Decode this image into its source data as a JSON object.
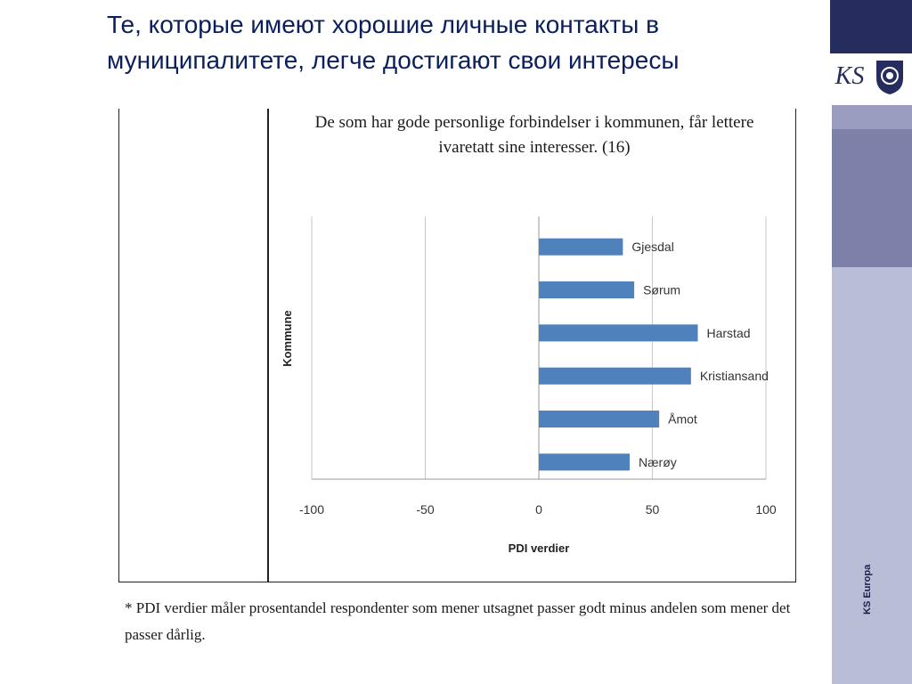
{
  "slide": {
    "title": "Те, которые имеют хорошие личные контакты в муниципалитете, легче достигают свои интересы",
    "side_caption": "KS Europa",
    "logo_text": "KS",
    "footnote": "* PDI verdier måler prosentandel respondenter som mener utsagnet passer godt minus andelen som mener det passer dårlig.",
    "colors": {
      "navy": "#262d5e",
      "mid": "#7d80a9",
      "light": "#babdd6",
      "title": "#0a1f5c",
      "bar": "#4f81bd"
    }
  },
  "chart_data": {
    "type": "bar",
    "orientation": "horizontal",
    "title": "De som har gode personlige forbindelser i kommunen, får lettere ivaretatt sine interesser. (16)",
    "xlabel": "PDI verdier",
    "ylabel": "Kommune",
    "categories": [
      "Gjesdal",
      "Sørum",
      "Harstad",
      "Kristiansand",
      "Åmot",
      "Nærøy"
    ],
    "values": [
      37,
      42,
      70,
      67,
      53,
      40
    ],
    "xlim": [
      -100,
      100
    ],
    "xticks": [
      -100,
      -50,
      0,
      50,
      100
    ],
    "xtick_labels": [
      "-100",
      "-50",
      "0",
      "50",
      "100"
    ],
    "grid": "vertical",
    "legend": "none"
  }
}
